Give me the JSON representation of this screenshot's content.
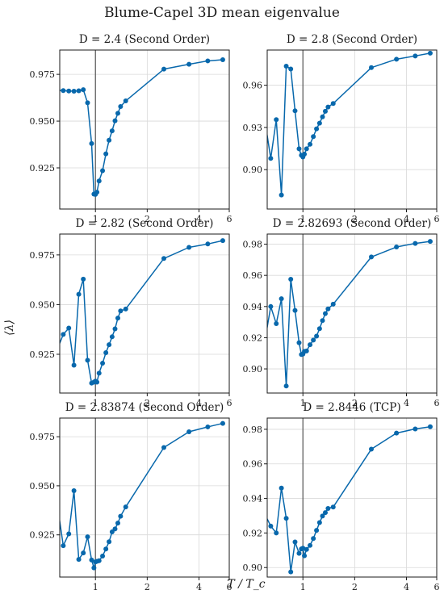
{
  "figure": {
    "title": "Blume-Capel 3D mean eigenvalue",
    "xlabel": "T / T_c",
    "ylabel": "⟨λ⟩"
  },
  "chart_data": [
    {
      "type": "line",
      "title": "D = 2.4 (Second Order)",
      "xscale": "log",
      "xlim": [
        0.62,
        6
      ],
      "ylim": [
        0.903,
        0.988
      ],
      "xticks": [
        1,
        2,
        4,
        6
      ],
      "yticks": [
        0.925,
        0.95,
        0.975
      ],
      "ytick_labels": [
        "0.925",
        "0.950",
        "0.975"
      ],
      "vline_x": 1,
      "grid": true,
      "color": "#0868ac",
      "x": [
        0.6,
        0.65,
        0.7,
        0.75,
        0.8,
        0.85,
        0.9,
        0.95,
        0.98,
        1.0,
        1.02,
        1.05,
        1.1,
        1.15,
        1.2,
        1.25,
        1.3,
        1.35,
        1.4,
        1.5,
        2.5,
        3.5,
        4.5,
        5.5
      ],
      "y": [
        0.9665,
        0.9663,
        0.9661,
        0.966,
        0.9662,
        0.9668,
        0.9598,
        0.938,
        0.911,
        0.9108,
        0.912,
        0.918,
        0.9235,
        0.9325,
        0.9398,
        0.9448,
        0.9502,
        0.9542,
        0.9578,
        0.9608,
        0.9778,
        0.9804,
        0.9822,
        0.9828
      ]
    },
    {
      "type": "line",
      "title": "D = 2.8 (Second Order)",
      "xscale": "log",
      "xlim": [
        0.62,
        6
      ],
      "ylim": [
        0.872,
        0.985
      ],
      "xticks": [
        1,
        2,
        4,
        6
      ],
      "yticks": [
        0.9,
        0.93,
        0.96
      ],
      "ytick_labels": [
        "0.90",
        "0.93",
        "0.96"
      ],
      "vline_x": 1,
      "grid": true,
      "color": "#0868ac",
      "x": [
        0.6,
        0.65,
        0.7,
        0.75,
        0.8,
        0.85,
        0.9,
        0.95,
        0.98,
        1.0,
        1.02,
        1.05,
        1.1,
        1.15,
        1.2,
        1.25,
        1.3,
        1.35,
        1.4,
        1.5,
        2.5,
        3.5,
        4.5,
        5.5
      ],
      "y": [
        0.9355,
        0.908,
        0.9355,
        0.882,
        0.9735,
        0.9715,
        0.9418,
        0.9148,
        0.9102,
        0.909,
        0.911,
        0.9148,
        0.918,
        0.9235,
        0.929,
        0.933,
        0.9375,
        0.9415,
        0.9445,
        0.947,
        0.9725,
        0.9785,
        0.9808,
        0.9828
      ]
    },
    {
      "type": "line",
      "title": "D = 2.82 (Second Order)",
      "xscale": "log",
      "xlim": [
        0.62,
        6
      ],
      "ylim": [
        0.9055,
        0.9855
      ],
      "xticks": [
        1,
        2,
        4,
        6
      ],
      "yticks": [
        0.925,
        0.95,
        0.975
      ],
      "ytick_labels": [
        "0.925",
        "0.950",
        "0.975"
      ],
      "vline_x": 1,
      "grid": true,
      "color": "#0868ac",
      "x": [
        0.6,
        0.65,
        0.7,
        0.75,
        0.8,
        0.85,
        0.9,
        0.95,
        0.98,
        1.0,
        1.02,
        1.05,
        1.1,
        1.15,
        1.2,
        1.25,
        1.3,
        1.35,
        1.4,
        1.5,
        2.5,
        3.5,
        4.5,
        5.5
      ],
      "y": [
        0.9275,
        0.935,
        0.9382,
        0.9195,
        0.9552,
        0.9628,
        0.922,
        0.9105,
        0.911,
        0.9115,
        0.911,
        0.9155,
        0.9205,
        0.9258,
        0.9298,
        0.9338,
        0.9378,
        0.9432,
        0.9468,
        0.9478,
        0.9732,
        0.9788,
        0.9805,
        0.9822
      ]
    },
    {
      "type": "line",
      "title": "D = 2.82693 (Second Order)",
      "xscale": "log",
      "xlim": [
        0.62,
        6
      ],
      "ylim": [
        0.8845,
        0.9865
      ],
      "xticks": [
        1,
        2,
        4,
        6
      ],
      "yticks": [
        0.9,
        0.92,
        0.94,
        0.96,
        0.98
      ],
      "ytick_labels": [
        "0.90",
        "0.92",
        "0.94",
        "0.96",
        "0.98"
      ],
      "vline_x": 1,
      "grid": true,
      "color": "#0868ac",
      "x": [
        0.6,
        0.65,
        0.7,
        0.75,
        0.8,
        0.85,
        0.9,
        0.95,
        0.98,
        1.0,
        1.02,
        1.05,
        1.1,
        1.15,
        1.2,
        1.25,
        1.3,
        1.35,
        1.4,
        1.5,
        2.5,
        3.5,
        4.5,
        5.5
      ],
      "y": [
        0.9175,
        0.94,
        0.929,
        0.945,
        0.889,
        0.9575,
        0.9375,
        0.9168,
        0.9092,
        0.9095,
        0.9112,
        0.9115,
        0.9155,
        0.9185,
        0.921,
        0.9258,
        0.931,
        0.9355,
        0.9385,
        0.9415,
        0.9718,
        0.9782,
        0.9805,
        0.9818
      ]
    },
    {
      "type": "line",
      "title": "D = 2.83874 (Second Order)",
      "xscale": "log",
      "xlim": [
        0.62,
        6
      ],
      "ylim": [
        0.9035,
        0.9845
      ],
      "xticks": [
        1,
        2,
        4,
        6
      ],
      "yticks": [
        0.925,
        0.95,
        0.975
      ],
      "ytick_labels": [
        "0.925",
        "0.950",
        "0.975"
      ],
      "vline_x": 1,
      "grid": true,
      "color": "#0868ac",
      "x": [
        0.6,
        0.65,
        0.7,
        0.75,
        0.8,
        0.85,
        0.9,
        0.95,
        0.98,
        1.0,
        1.02,
        1.05,
        1.1,
        1.15,
        1.2,
        1.25,
        1.3,
        1.35,
        1.4,
        1.5,
        2.5,
        3.5,
        4.5,
        5.5
      ],
      "y": [
        0.9405,
        0.9195,
        0.9255,
        0.9475,
        0.9125,
        0.9158,
        0.924,
        0.9122,
        0.9082,
        0.9112,
        0.9115,
        0.9118,
        0.9142,
        0.9178,
        0.9215,
        0.9265,
        0.928,
        0.931,
        0.9345,
        0.9392,
        0.9695,
        0.9775,
        0.98,
        0.9818
      ]
    },
    {
      "type": "line",
      "title": "D = 2.8446 (TCP)",
      "xscale": "log",
      "xlim": [
        0.62,
        6
      ],
      "ylim": [
        0.8945,
        0.9865
      ],
      "xticks": [
        1,
        2,
        4,
        6
      ],
      "yticks": [
        0.9,
        0.92,
        0.94,
        0.96,
        0.98
      ],
      "ytick_labels": [
        "0.90",
        "0.92",
        "0.94",
        "0.96",
        "0.98"
      ],
      "vline_x": 1,
      "grid": true,
      "color": "#0868ac",
      "x": [
        0.6,
        0.65,
        0.7,
        0.75,
        0.8,
        0.85,
        0.9,
        0.95,
        0.98,
        1.0,
        1.02,
        1.05,
        1.1,
        1.15,
        1.2,
        1.25,
        1.3,
        1.35,
        1.4,
        1.5,
        2.5,
        3.5,
        4.5,
        5.5
      ],
      "y": [
        0.931,
        0.924,
        0.92,
        0.946,
        0.9285,
        0.8975,
        0.9148,
        0.9082,
        0.9108,
        0.9112,
        0.9068,
        0.9105,
        0.9128,
        0.9168,
        0.9215,
        0.926,
        0.9298,
        0.9318,
        0.9342,
        0.935,
        0.9685,
        0.9778,
        0.9802,
        0.9815
      ]
    }
  ]
}
